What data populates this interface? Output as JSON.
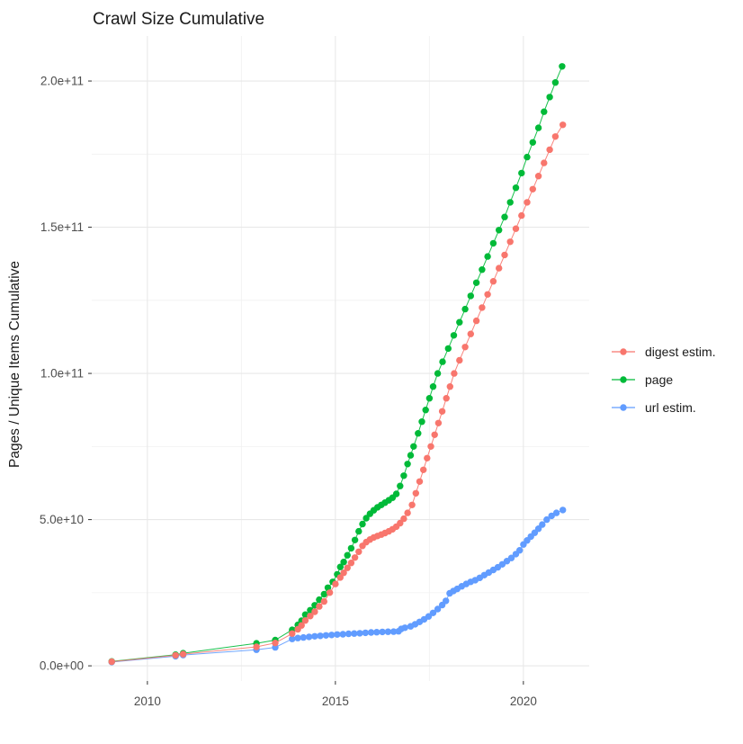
{
  "title": "Crawl Size Cumulative",
  "legend": {
    "items": [
      {
        "label": "digest estim.",
        "color": "#F8766D"
      },
      {
        "label": "page",
        "color": "#00BA38"
      },
      {
        "label": "url estim.",
        "color": "#619CFF"
      }
    ]
  },
  "colors": {
    "digest": "#F8766D",
    "page": "#00BA38",
    "url": "#619CFF",
    "grid_major": "#e8e8e8",
    "grid_minor": "#f1f1f1",
    "tick_text": "#4d4d4d",
    "text": "#1a1a1a"
  },
  "chart_data": {
    "type": "scatter",
    "title": "Crawl Size Cumulative",
    "xlabel": "",
    "ylabel": "Pages / Unique Items Cumulative",
    "x_is": "year (crawl date)",
    "y_value_unit": "1e9 items (points stored as [year, billions])",
    "xlim": [
      2008.52,
      2021.75
    ],
    "ylim_e9": [
      -5.2,
      215.4
    ],
    "grid": true,
    "legend_position": "right-center",
    "point_style": "dot-with-thin-line",
    "x_major_ticks": [
      {
        "label": "2010",
        "value": 2010
      },
      {
        "label": "2015",
        "value": 2015
      },
      {
        "label": "2020",
        "value": 2020
      }
    ],
    "x_minor_ticks": [
      2012.5,
      2017.5
    ],
    "y_major_ticks": [
      {
        "label": "0.0e+00",
        "value_e9": 0
      },
      {
        "label": "5.0e+10",
        "value_e9": 50
      },
      {
        "label": "1.0e+11",
        "value_e9": 100
      },
      {
        "label": "1.5e+11",
        "value_e9": 150
      },
      {
        "label": "2.0e+11",
        "value_e9": 200
      }
    ],
    "y_minor_ticks_e9": [
      25,
      75,
      125,
      175
    ],
    "draw_order": [
      "url estim.",
      "page",
      "digest estim."
    ],
    "series": [
      {
        "name": "digest estim.",
        "color": "#F8766D",
        "points": [
          [
            2009.05,
            1.4
          ],
          [
            2010.75,
            3.6
          ],
          [
            2010.95,
            4.0
          ],
          [
            2012.9,
            6.5
          ],
          [
            2013.4,
            7.8
          ],
          [
            2013.85,
            11.0
          ],
          [
            2014.0,
            12.5
          ],
          [
            2014.1,
            13.8
          ],
          [
            2014.2,
            15.5
          ],
          [
            2014.33,
            17.0
          ],
          [
            2014.45,
            18.5
          ],
          [
            2014.57,
            20.3
          ],
          [
            2014.7,
            22.0
          ],
          [
            2014.85,
            25.0
          ],
          [
            2015.0,
            28.0
          ],
          [
            2015.13,
            30.2
          ],
          [
            2015.22,
            31.8
          ],
          [
            2015.32,
            33.5
          ],
          [
            2015.42,
            35.2
          ],
          [
            2015.52,
            37.0
          ],
          [
            2015.62,
            39.0
          ],
          [
            2015.72,
            41.0
          ],
          [
            2015.82,
            42.3
          ],
          [
            2015.92,
            43.2
          ],
          [
            2016.02,
            43.9
          ],
          [
            2016.12,
            44.4
          ],
          [
            2016.22,
            44.9
          ],
          [
            2016.32,
            45.4
          ],
          [
            2016.42,
            46.0
          ],
          [
            2016.52,
            46.7
          ],
          [
            2016.62,
            47.6
          ],
          [
            2016.72,
            48.8
          ],
          [
            2016.82,
            50.3
          ],
          [
            2016.92,
            52.3
          ],
          [
            2017.04,
            55.0
          ],
          [
            2017.14,
            59.0
          ],
          [
            2017.24,
            63.0
          ],
          [
            2017.34,
            67.0
          ],
          [
            2017.44,
            71.0
          ],
          [
            2017.54,
            75.0
          ],
          [
            2017.64,
            79.0
          ],
          [
            2017.74,
            83.0
          ],
          [
            2017.84,
            87.0
          ],
          [
            2017.95,
            91.5
          ],
          [
            2018.05,
            95.5
          ],
          [
            2018.16,
            100.0
          ],
          [
            2018.3,
            104.5
          ],
          [
            2018.45,
            109.0
          ],
          [
            2018.6,
            113.5
          ],
          [
            2018.75,
            118.0
          ],
          [
            2018.9,
            122.5
          ],
          [
            2019.05,
            127.0
          ],
          [
            2019.2,
            131.5
          ],
          [
            2019.35,
            136.0
          ],
          [
            2019.5,
            140.5
          ],
          [
            2019.65,
            145.0
          ],
          [
            2019.8,
            149.5
          ],
          [
            2019.95,
            154.0
          ],
          [
            2020.1,
            158.5
          ],
          [
            2020.25,
            163.0
          ],
          [
            2020.4,
            167.5
          ],
          [
            2020.55,
            172.0
          ],
          [
            2020.7,
            176.5
          ],
          [
            2020.85,
            181.0
          ],
          [
            2021.05,
            185.0
          ]
        ]
      },
      {
        "name": "page",
        "color": "#00BA38",
        "points": [
          [
            2009.05,
            1.5
          ],
          [
            2010.75,
            3.8
          ],
          [
            2010.95,
            4.3
          ],
          [
            2012.9,
            7.7
          ],
          [
            2013.4,
            8.8
          ],
          [
            2013.85,
            12.3
          ],
          [
            2014.0,
            14.0
          ],
          [
            2014.1,
            15.4
          ],
          [
            2014.2,
            17.5
          ],
          [
            2014.33,
            19.0
          ],
          [
            2014.45,
            20.7
          ],
          [
            2014.57,
            22.6
          ],
          [
            2014.7,
            24.5
          ],
          [
            2014.8,
            26.7
          ],
          [
            2014.93,
            28.7
          ],
          [
            2015.05,
            31.3
          ],
          [
            2015.13,
            33.8
          ],
          [
            2015.22,
            35.5
          ],
          [
            2015.32,
            37.8
          ],
          [
            2015.42,
            40.2
          ],
          [
            2015.52,
            43.0
          ],
          [
            2015.62,
            46.0
          ],
          [
            2015.72,
            48.5
          ],
          [
            2015.82,
            50.5
          ],
          [
            2015.92,
            52.0
          ],
          [
            2016.02,
            53.2
          ],
          [
            2016.12,
            54.2
          ],
          [
            2016.22,
            55.0
          ],
          [
            2016.32,
            55.8
          ],
          [
            2016.42,
            56.6
          ],
          [
            2016.52,
            57.5
          ],
          [
            2016.62,
            58.8
          ],
          [
            2016.72,
            61.5
          ],
          [
            2016.82,
            65.0
          ],
          [
            2016.92,
            69.0
          ],
          [
            2017.0,
            72.0
          ],
          [
            2017.08,
            75.0
          ],
          [
            2017.2,
            79.5
          ],
          [
            2017.3,
            83.5
          ],
          [
            2017.4,
            87.5
          ],
          [
            2017.5,
            91.5
          ],
          [
            2017.6,
            95.5
          ],
          [
            2017.72,
            100.0
          ],
          [
            2017.85,
            104.0
          ],
          [
            2018.0,
            108.5
          ],
          [
            2018.15,
            113.0
          ],
          [
            2018.3,
            117.5
          ],
          [
            2018.45,
            122.0
          ],
          [
            2018.6,
            126.5
          ],
          [
            2018.75,
            131.0
          ],
          [
            2018.9,
            135.5
          ],
          [
            2019.05,
            140.0
          ],
          [
            2019.2,
            144.5
          ],
          [
            2019.35,
            149.0
          ],
          [
            2019.5,
            153.5
          ],
          [
            2019.65,
            158.5
          ],
          [
            2019.8,
            163.5
          ],
          [
            2019.95,
            168.5
          ],
          [
            2020.1,
            174.0
          ],
          [
            2020.25,
            179.0
          ],
          [
            2020.4,
            184.0
          ],
          [
            2020.55,
            189.5
          ],
          [
            2020.7,
            194.5
          ],
          [
            2020.85,
            199.5
          ],
          [
            2021.03,
            205.0
          ]
        ]
      },
      {
        "name": "url estim.",
        "color": "#619CFF",
        "points": [
          [
            2009.05,
            1.3
          ],
          [
            2010.75,
            3.3
          ],
          [
            2010.95,
            3.7
          ],
          [
            2012.9,
            5.5
          ],
          [
            2013.4,
            6.3
          ],
          [
            2013.85,
            9.2
          ],
          [
            2014.0,
            9.5
          ],
          [
            2014.15,
            9.7
          ],
          [
            2014.3,
            9.9
          ],
          [
            2014.45,
            10.1
          ],
          [
            2014.6,
            10.25
          ],
          [
            2014.75,
            10.4
          ],
          [
            2014.9,
            10.55
          ],
          [
            2015.05,
            10.7
          ],
          [
            2015.2,
            10.8
          ],
          [
            2015.35,
            10.95
          ],
          [
            2015.5,
            11.05
          ],
          [
            2015.65,
            11.15
          ],
          [
            2015.8,
            11.3
          ],
          [
            2015.95,
            11.4
          ],
          [
            2016.1,
            11.5
          ],
          [
            2016.25,
            11.6
          ],
          [
            2016.4,
            11.65
          ],
          [
            2016.55,
            11.7
          ],
          [
            2016.68,
            11.8
          ],
          [
            2016.75,
            12.6
          ],
          [
            2016.85,
            13.0
          ],
          [
            2017.0,
            13.5
          ],
          [
            2017.12,
            14.2
          ],
          [
            2017.24,
            15.0
          ],
          [
            2017.36,
            15.9
          ],
          [
            2017.48,
            16.9
          ],
          [
            2017.6,
            18.1
          ],
          [
            2017.72,
            19.4
          ],
          [
            2017.84,
            20.8
          ],
          [
            2017.94,
            22.2
          ],
          [
            2018.04,
            24.8
          ],
          [
            2018.14,
            25.6
          ],
          [
            2018.24,
            26.3
          ],
          [
            2018.36,
            27.2
          ],
          [
            2018.48,
            28.0
          ],
          [
            2018.6,
            28.7
          ],
          [
            2018.72,
            29.3
          ],
          [
            2018.84,
            30.1
          ],
          [
            2018.96,
            31.0
          ],
          [
            2019.08,
            31.9
          ],
          [
            2019.2,
            32.8
          ],
          [
            2019.32,
            33.7
          ],
          [
            2019.44,
            34.7
          ],
          [
            2019.56,
            35.8
          ],
          [
            2019.68,
            36.9
          ],
          [
            2019.8,
            38.2
          ],
          [
            2019.9,
            39.5
          ],
          [
            2020.0,
            41.5
          ],
          [
            2020.1,
            42.9
          ],
          [
            2020.2,
            44.2
          ],
          [
            2020.3,
            45.5
          ],
          [
            2020.4,
            46.9
          ],
          [
            2020.5,
            48.3
          ],
          [
            2020.62,
            50.0
          ],
          [
            2020.75,
            51.3
          ],
          [
            2020.88,
            52.3
          ],
          [
            2021.05,
            53.3
          ]
        ]
      }
    ]
  }
}
